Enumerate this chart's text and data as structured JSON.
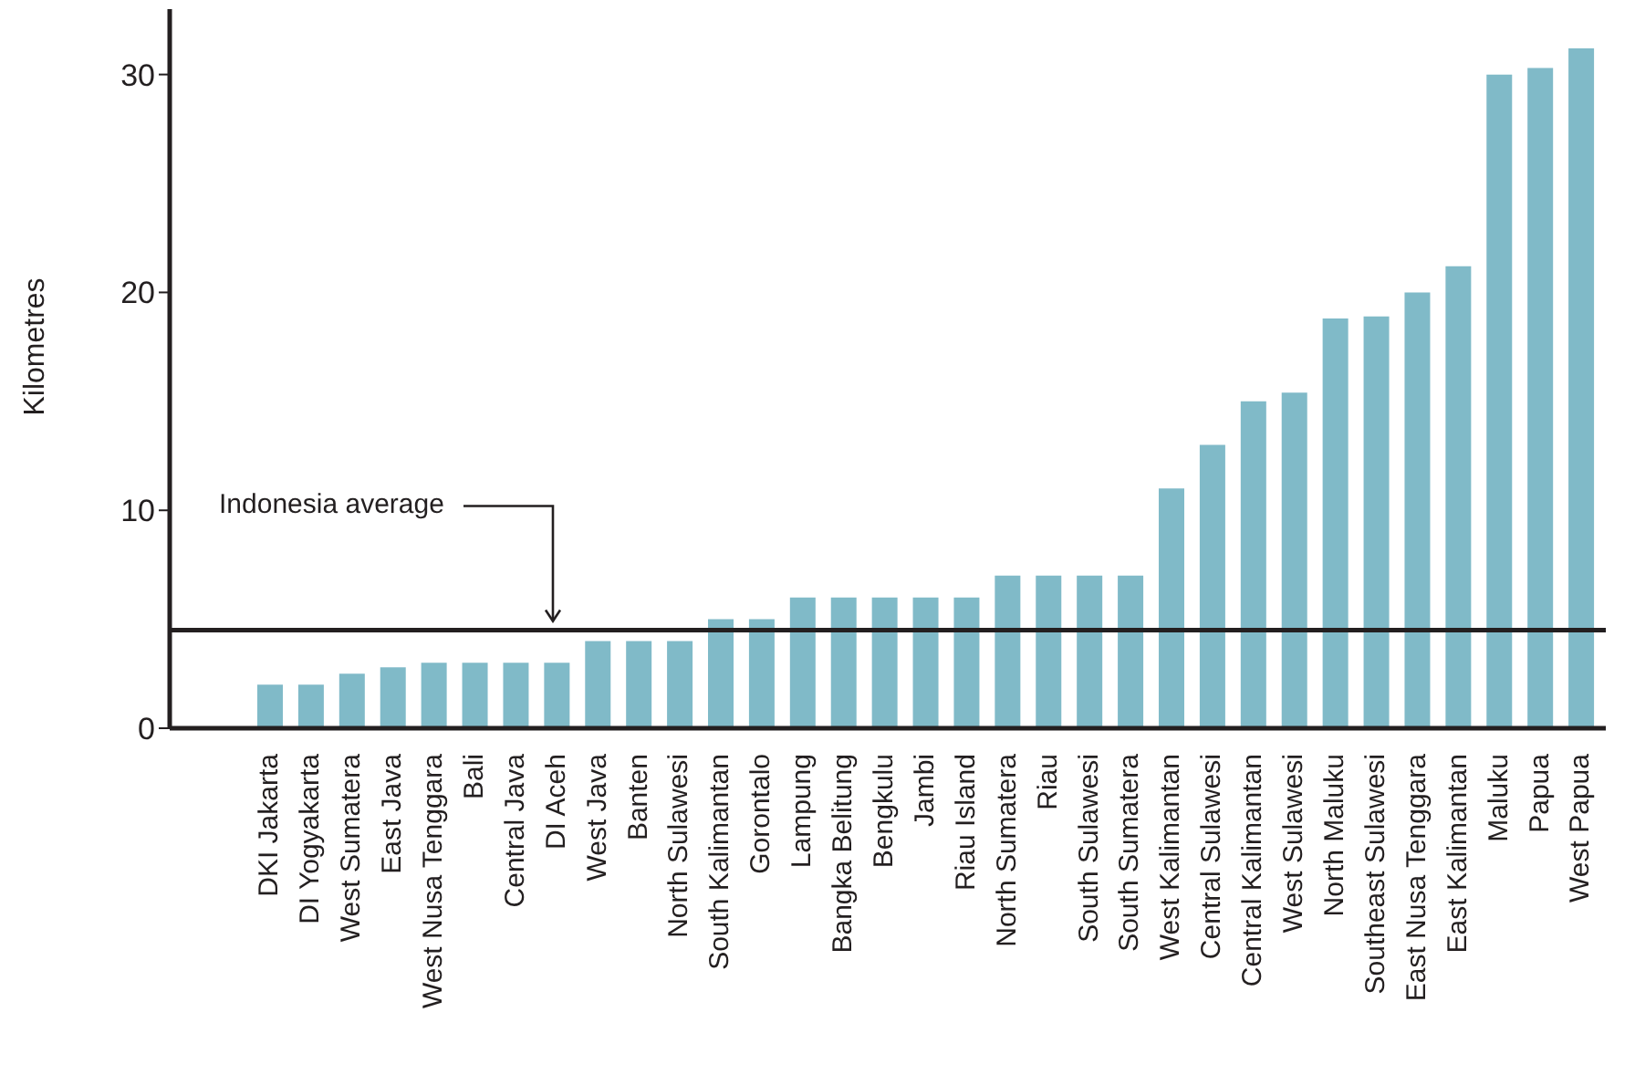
{
  "chart_data": {
    "type": "bar",
    "ylabel": "Kilometres",
    "categories": [
      "DKI Jakarta",
      "DI Yogyakarta",
      "West Sumatera",
      "East Java",
      "West Nusa Tenggara",
      "Bali",
      "Central Java",
      "DI Aceh",
      "West Java",
      "Banten",
      "North Sulawesi",
      "South Kalimantan",
      "Gorontalo",
      "Lampung",
      "Bangka Belitung",
      "Bengkulu",
      "Jambi",
      "Riau Island",
      "North Sumatera",
      "Riau",
      "South Sulawesi",
      "South Sumatera",
      "West Kalimantan",
      "Central Sulawesi",
      "Central Kalimantan",
      "West Sulawesi",
      "North Maluku",
      "Southeast Sulawesi",
      "East Nusa Tenggara",
      "East Kalimantan",
      "Maluku",
      "Papua",
      "West Papua"
    ],
    "values": [
      2,
      2,
      2.5,
      2.8,
      3,
      3,
      3,
      3,
      4,
      4,
      4,
      5,
      5,
      6,
      6,
      6,
      6,
      6,
      7,
      7,
      7,
      7,
      11,
      13,
      15,
      15.4,
      18.8,
      18.9,
      20,
      21.2,
      30,
      30.3,
      31.2
    ],
    "color": "#80bac8",
    "ylim": [
      0,
      33
    ],
    "yticks": [
      0,
      10,
      20,
      30
    ],
    "grid": false,
    "ref_lines": [
      {
        "axis": "y",
        "value": 4.5,
        "label": "Indonesia average",
        "color": "#231f20"
      }
    ]
  }
}
